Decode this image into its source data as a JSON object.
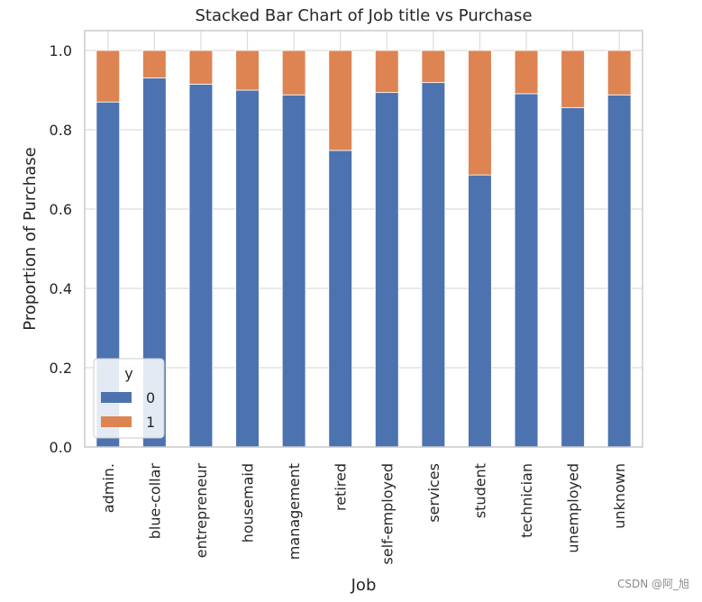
{
  "chart_data": {
    "type": "bar",
    "stacked": true,
    "title": "Stacked Bar Chart of Job title vs Purchase",
    "xlabel": "Job",
    "ylabel": "Proportion of Purchase",
    "categories": [
      "admin.",
      "blue-collar",
      "entrepreneur",
      "housemaid",
      "management",
      "retired",
      "self-employed",
      "services",
      "student",
      "technician",
      "unemployed",
      "unknown"
    ],
    "series": [
      {
        "name": "0",
        "color": "#4c72b0",
        "values": [
          0.87,
          0.931,
          0.915,
          0.9,
          0.888,
          0.748,
          0.894,
          0.919,
          0.686,
          0.891,
          0.856,
          0.888
        ]
      },
      {
        "name": "1",
        "color": "#dd8452",
        "values": [
          0.13,
          0.069,
          0.085,
          0.1,
          0.112,
          0.252,
          0.106,
          0.081,
          0.314,
          0.109,
          0.144,
          0.112
        ]
      }
    ],
    "ylim": [
      0,
      1.05
    ],
    "yticks": [
      "0.0",
      "0.2",
      "0.4",
      "0.6",
      "0.8",
      "1.0"
    ],
    "grid": true,
    "legend": {
      "title": "y",
      "position": "lower-left",
      "entries": [
        "0",
        "1"
      ]
    }
  },
  "watermark": "CSDN @阿_旭"
}
